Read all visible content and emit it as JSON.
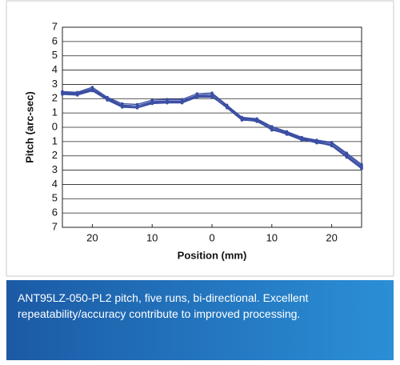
{
  "chart_data": {
    "type": "line",
    "xlabel": "Position (mm)",
    "ylabel": "Pitch (arc-sec)",
    "caption": "ANT95LZ-050-PL2 pitch, five runs, bi-directional. Excellent repeatability/accuracy contribute to improved processing.",
    "x": [
      -25,
      -22.5,
      -20,
      -17.5,
      -15,
      -12.5,
      -10,
      -7.5,
      -5,
      -2.5,
      0,
      2.5,
      5,
      7.5,
      10,
      12.5,
      15,
      17.5,
      20,
      22.5,
      25
    ],
    "series": [
      {
        "color": "#3b4fa3",
        "values": [
          2.4,
          2.35,
          2.65,
          2.0,
          1.5,
          1.4,
          1.75,
          1.8,
          1.8,
          2.2,
          2.2,
          1.4,
          0.6,
          0.5,
          -0.1,
          -0.4,
          -0.8,
          -1.0,
          -1.2,
          -2.0,
          -2.8
        ]
      },
      {
        "color": "#3b4fa3",
        "values": [
          2.5,
          2.45,
          2.8,
          2.1,
          1.65,
          1.6,
          1.9,
          1.95,
          1.95,
          2.35,
          2.4,
          1.55,
          0.7,
          0.6,
          0.05,
          -0.3,
          -0.7,
          -0.9,
          -1.05,
          -1.8,
          -2.6
        ]
      },
      {
        "color": "#3b4fa3",
        "values": [
          2.3,
          2.25,
          2.55,
          1.9,
          1.4,
          1.35,
          1.65,
          1.7,
          1.7,
          2.1,
          2.1,
          1.45,
          0.55,
          0.4,
          -0.15,
          -0.5,
          -0.9,
          -1.05,
          -1.3,
          -2.1,
          -2.9
        ]
      },
      {
        "color": "#3b4fa3",
        "values": [
          2.45,
          2.4,
          2.7,
          2.05,
          1.55,
          1.5,
          1.8,
          1.85,
          1.85,
          2.25,
          2.3,
          1.5,
          0.65,
          0.55,
          0.0,
          -0.35,
          -0.75,
          -0.95,
          -1.1,
          -1.9,
          -2.7
        ]
      },
      {
        "color": "#3b4fa3",
        "values": [
          2.35,
          2.3,
          2.6,
          1.95,
          1.45,
          1.4,
          1.7,
          1.75,
          1.75,
          2.15,
          2.15,
          1.35,
          0.5,
          0.45,
          -0.2,
          -0.45,
          -0.85,
          -1.1,
          -1.25,
          -2.05,
          -2.85
        ]
      }
    ],
    "xlim": [
      -25,
      25
    ],
    "xticks": [
      {
        "value": -20,
        "label": "20"
      },
      {
        "value": -10,
        "label": "10"
      },
      0,
      10,
      20
    ],
    "ylim": [
      -7,
      7
    ],
    "yticks": [
      {
        "value": -7,
        "label": "7"
      },
      {
        "value": -6,
        "label": "6"
      },
      {
        "value": -5,
        "label": "5"
      },
      {
        "value": -4,
        "label": "4"
      },
      {
        "value": -3,
        "label": "3"
      },
      {
        "value": -2,
        "label": "2"
      },
      {
        "value": -1,
        "label": "1"
      },
      0,
      1,
      2,
      3,
      4,
      5,
      6,
      7
    ],
    "grid": true
  }
}
